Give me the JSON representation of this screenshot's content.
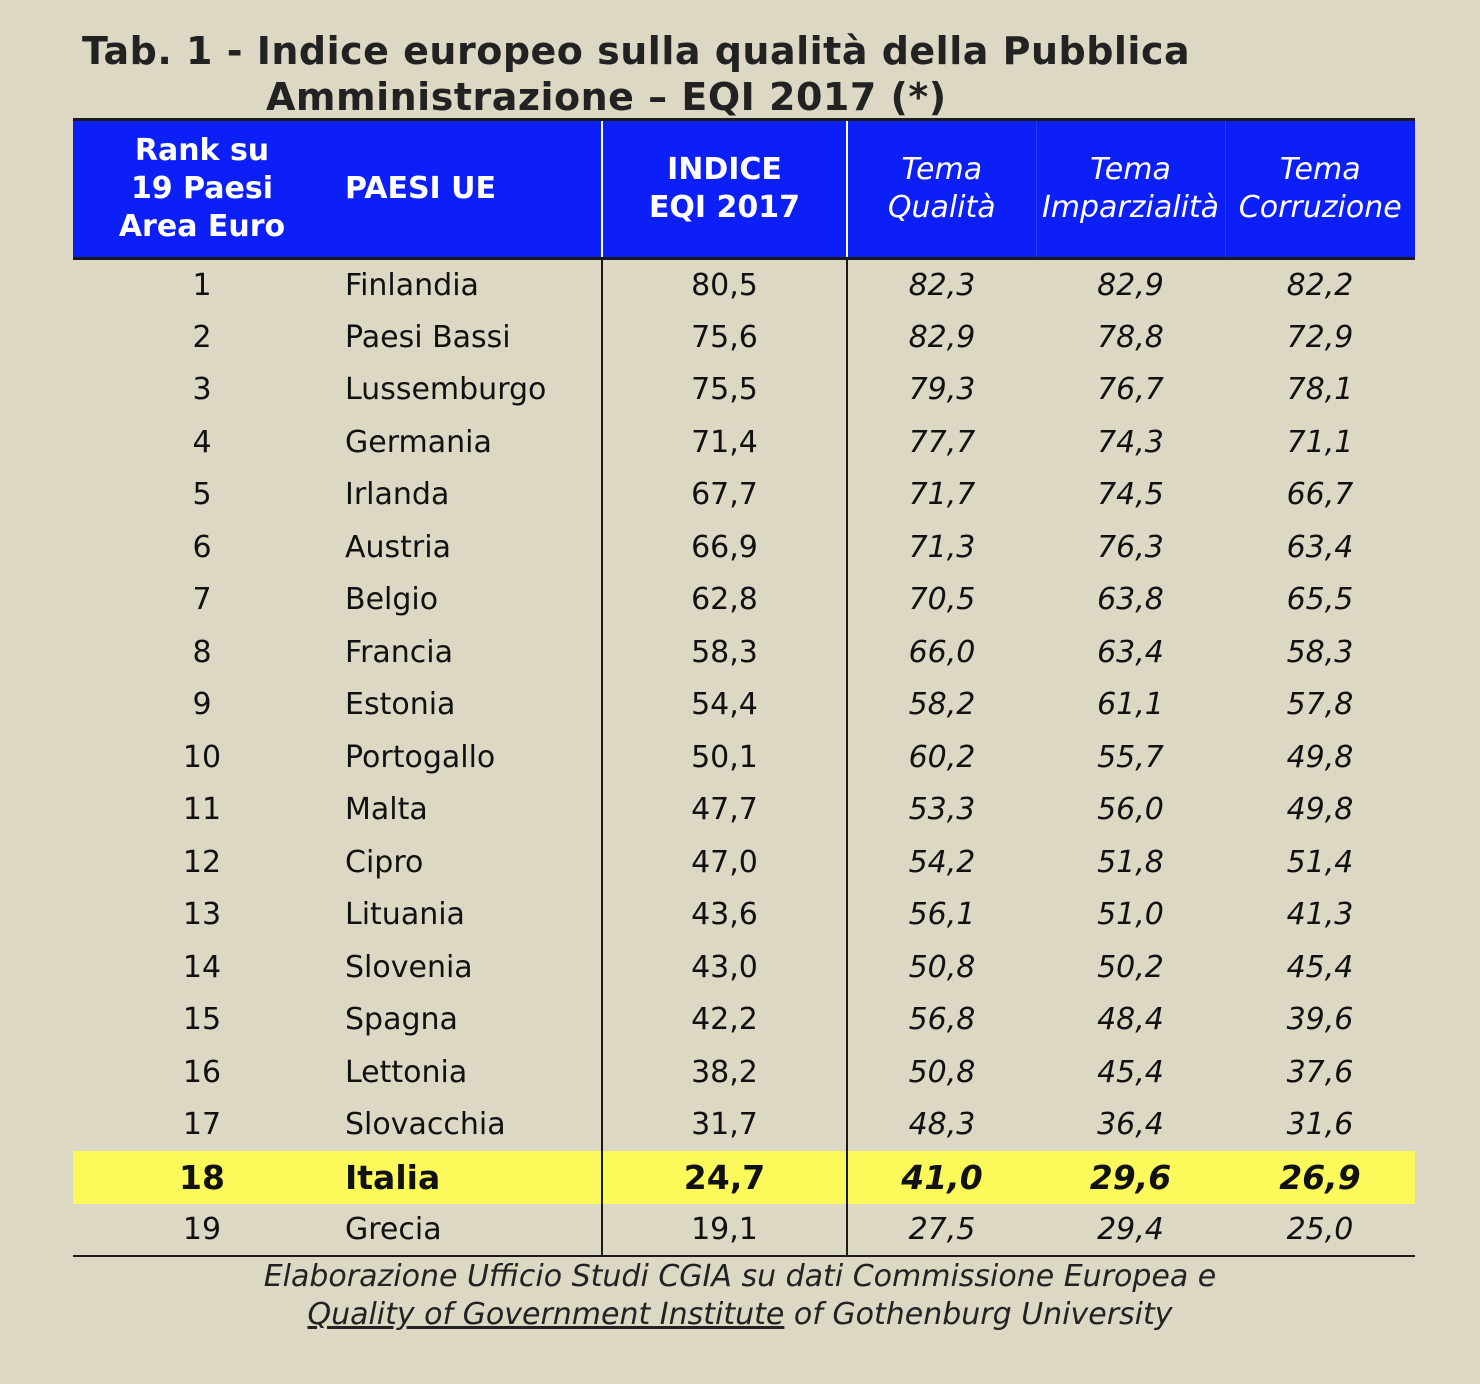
{
  "title": {
    "line1": "Tab. 1 -  Indice europeo sulla qualità della Pubblica",
    "line2": "Amministrazione – EQI 2017 (*)"
  },
  "header": {
    "rank_line1": "Rank su",
    "rank_line2": "19 Paesi",
    "rank_line3": "Area Euro",
    "country": "PAESI UE",
    "index_line1": "INDICE",
    "index_line2": "EQI 2017",
    "quality_line1": "Tema",
    "quality_line2": "Qualità",
    "impartiality_line1": "Tema",
    "impartiality_line2": "Imparzialità",
    "corruption_line1": "Tema",
    "corruption_line2": "Corruzione"
  },
  "rows": [
    {
      "rank": "1",
      "country": "Finlandia",
      "index": "80,5",
      "quality": "82,3",
      "impartiality": "82,9",
      "corruption": "82,2"
    },
    {
      "rank": "2",
      "country": "Paesi Bassi",
      "index": "75,6",
      "quality": "82,9",
      "impartiality": "78,8",
      "corruption": "72,9"
    },
    {
      "rank": "3",
      "country": "Lussemburgo",
      "index": "75,5",
      "quality": "79,3",
      "impartiality": "76,7",
      "corruption": "78,1"
    },
    {
      "rank": "4",
      "country": "Germania",
      "index": "71,4",
      "quality": "77,7",
      "impartiality": "74,3",
      "corruption": "71,1"
    },
    {
      "rank": "5",
      "country": "Irlanda",
      "index": "67,7",
      "quality": "71,7",
      "impartiality": "74,5",
      "corruption": "66,7"
    },
    {
      "rank": "6",
      "country": "Austria",
      "index": "66,9",
      "quality": "71,3",
      "impartiality": "76,3",
      "corruption": "63,4"
    },
    {
      "rank": "7",
      "country": "Belgio",
      "index": "62,8",
      "quality": "70,5",
      "impartiality": "63,8",
      "corruption": "65,5"
    },
    {
      "rank": "8",
      "country": "Francia",
      "index": "58,3",
      "quality": "66,0",
      "impartiality": "63,4",
      "corruption": "58,3"
    },
    {
      "rank": "9",
      "country": "Estonia",
      "index": "54,4",
      "quality": "58,2",
      "impartiality": "61,1",
      "corruption": "57,8"
    },
    {
      "rank": "10",
      "country": "Portogallo",
      "index": "50,1",
      "quality": "60,2",
      "impartiality": "55,7",
      "corruption": "49,8"
    },
    {
      "rank": "11",
      "country": "Malta",
      "index": "47,7",
      "quality": "53,3",
      "impartiality": "56,0",
      "corruption": "49,8"
    },
    {
      "rank": "12",
      "country": "Cipro",
      "index": "47,0",
      "quality": "54,2",
      "impartiality": "51,8",
      "corruption": "51,4"
    },
    {
      "rank": "13",
      "country": "Lituania",
      "index": "43,6",
      "quality": "56,1",
      "impartiality": "51,0",
      "corruption": "41,3"
    },
    {
      "rank": "14",
      "country": "Slovenia",
      "index": "43,0",
      "quality": "50,8",
      "impartiality": "50,2",
      "corruption": "45,4"
    },
    {
      "rank": "15",
      "country": "Spagna",
      "index": "42,2",
      "quality": "56,8",
      "impartiality": "48,4",
      "corruption": "39,6"
    },
    {
      "rank": "16",
      "country": "Lettonia",
      "index": "38,2",
      "quality": "50,8",
      "impartiality": "45,4",
      "corruption": "37,6"
    },
    {
      "rank": "17",
      "country": "Slovacchia",
      "index": "31,7",
      "quality": "48,3",
      "impartiality": "36,4",
      "corruption": "31,6"
    },
    {
      "rank": "18",
      "country": "Italia",
      "index": "24,7",
      "quality": "41,0",
      "impartiality": "29,6",
      "corruption": "26,9",
      "highlight": true
    },
    {
      "rank": "19",
      "country": "Grecia",
      "index": "19,1",
      "quality": "27,5",
      "impartiality": "29,4",
      "corruption": "25,0"
    }
  ],
  "source": {
    "line1": "Elaborazione Ufficio Studi CGIA su dati Commissione Europea e",
    "line2_link": "Quality of Government Institute",
    "line2_rest": " of Gothenburg University"
  },
  "colors": {
    "header_bg": "#0d1ff7",
    "highlight_bg": "#fbfa5a",
    "page_bg": "#ddd8c4"
  }
}
